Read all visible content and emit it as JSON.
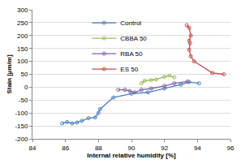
{
  "chart_data": {
    "type": "line",
    "x_label": "Internal relative humidity [%]",
    "y_label": "Stain [µm/m]",
    "xlim": [
      84,
      96
    ],
    "xticks": [
      84,
      86,
      88,
      90,
      92,
      94,
      96
    ],
    "ylim": [
      -200,
      300
    ],
    "yticks": [
      -200,
      -150,
      -100,
      -50,
      0,
      50,
      100,
      150,
      200,
      250,
      300
    ],
    "grid": true,
    "legend": "top left",
    "marker": "circle-open",
    "line_style": "solid",
    "series": [
      {
        "name": "Control",
        "color": "#4a7ebb",
        "x": [
          85.8,
          86.1,
          86.4,
          86.7,
          87.0,
          87.4,
          87.8,
          88.0,
          88.1,
          88.9,
          90.0,
          91.0,
          92.0,
          93.0,
          93.5,
          94.1
        ],
        "values": [
          -140,
          -135,
          -140,
          -137,
          -130,
          -120,
          -117,
          -100,
          -85,
          -40,
          -25,
          -20,
          -5,
          10,
          20,
          15
        ]
      },
      {
        "name": "CBBA 50",
        "color": "#9bbb59",
        "x": [
          90.6,
          90.8,
          91.2,
          91.5,
          92.0,
          92.3,
          92.6
        ],
        "values": [
          15,
          25,
          28,
          30,
          40,
          45,
          38
        ]
      },
      {
        "name": "RBA 50",
        "color": "#8064a2",
        "x": [
          89.2,
          89.6,
          89.9,
          90.2,
          90.6,
          91.2,
          92.0,
          92.6,
          93.4
        ],
        "values": [
          -10,
          -10,
          -15,
          -20,
          -10,
          -5,
          5,
          15,
          22
        ]
      },
      {
        "name": "ES 50",
        "color": "#c0504d",
        "x": [
          93.35,
          93.5,
          93.6,
          93.5,
          93.55,
          93.5,
          93.6,
          93.8,
          94.9,
          95.6
        ],
        "values": [
          240,
          230,
          200,
          180,
          170,
          145,
          120,
          100,
          55,
          50
        ]
      }
    ]
  }
}
